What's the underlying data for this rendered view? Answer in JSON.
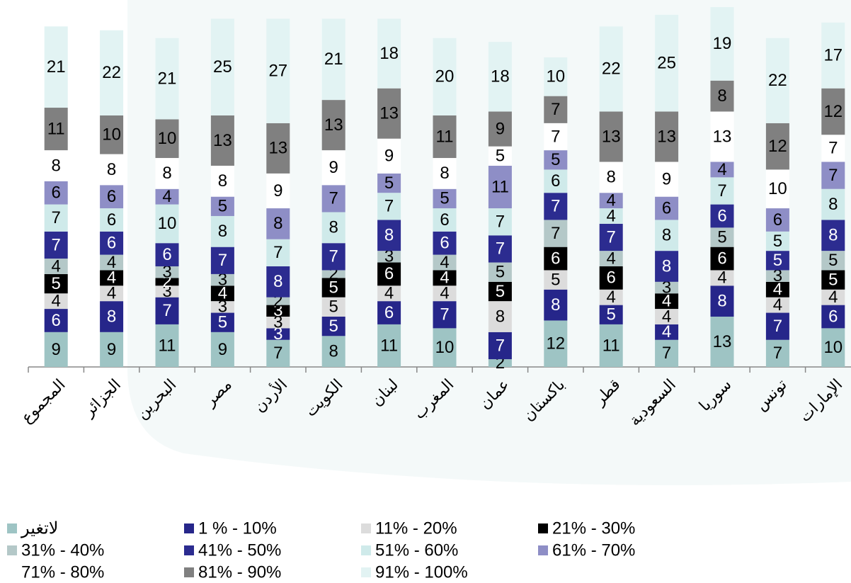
{
  "chart_data": {
    "type": "stacked_bar",
    "categories": [
      "المجموع",
      "الجزائر",
      "البحرين",
      "مصر",
      "الأردن",
      "الكويت",
      "لبنان",
      "المغرب",
      "عمان",
      "باكستان",
      "قطر",
      "السعودية",
      "سوريا",
      "تونس",
      "الإمارات"
    ],
    "series": [
      {
        "name": "لاتغير",
        "color": "#9ec4c4",
        "values": [
          9,
          9,
          11,
          9,
          7,
          8,
          11,
          10,
          2,
          12,
          11,
          7,
          13,
          7,
          10
        ]
      },
      {
        "name": "1 % - 10%",
        "color": "#26268a",
        "values": [
          6,
          8,
          7,
          5,
          3,
          5,
          6,
          7,
          7,
          8,
          5,
          4,
          8,
          7,
          6
        ]
      },
      {
        "name": "11% - 20%",
        "color": "#dcdcdc",
        "values": [
          4,
          4,
          3,
          3,
          3,
          5,
          4,
          4,
          8,
          5,
          4,
          4,
          4,
          4,
          4
        ]
      },
      {
        "name": "21% - 30%",
        "color": "#000000",
        "values": [
          5,
          4,
          2,
          4,
          3,
          5,
          6,
          4,
          5,
          6,
          6,
          4,
          6,
          4,
          5
        ]
      },
      {
        "name": "31% - 40%",
        "color": "#b4c8c8",
        "values": [
          4,
          4,
          3,
          3,
          2,
          2,
          3,
          4,
          5,
          7,
          4,
          3,
          5,
          3,
          5
        ]
      },
      {
        "name": "41% - 50%",
        "color": "#2c2c90",
        "values": [
          7,
          6,
          6,
          7,
          8,
          7,
          8,
          6,
          7,
          7,
          7,
          8,
          6,
          5,
          8
        ]
      },
      {
        "name": "51% - 60%",
        "color": "#cfeaea",
        "values": [
          7,
          6,
          10,
          8,
          7,
          8,
          7,
          6,
          7,
          6,
          4,
          8,
          7,
          5,
          8
        ]
      },
      {
        "name": "61% - 70%",
        "color": "#8e8ec6",
        "values": [
          6,
          6,
          4,
          5,
          8,
          7,
          5,
          5,
          11,
          5,
          4,
          6,
          4,
          6,
          7
        ]
      },
      {
        "name": "71% - 80%",
        "color": "#ffffff",
        "values": [
          8,
          8,
          8,
          8,
          9,
          9,
          9,
          8,
          5,
          7,
          8,
          9,
          13,
          10,
          7
        ]
      },
      {
        "name": "81% - 90%",
        "color": "#808080",
        "values": [
          11,
          10,
          10,
          13,
          13,
          13,
          13,
          11,
          9,
          7,
          13,
          13,
          8,
          12,
          12
        ]
      },
      {
        "name": "91% - 100%",
        "color": "#e2f3f3",
        "values": [
          21,
          22,
          21,
          25,
          27,
          21,
          18,
          20,
          18,
          10,
          22,
          25,
          19,
          22,
          17
        ]
      }
    ]
  }
}
